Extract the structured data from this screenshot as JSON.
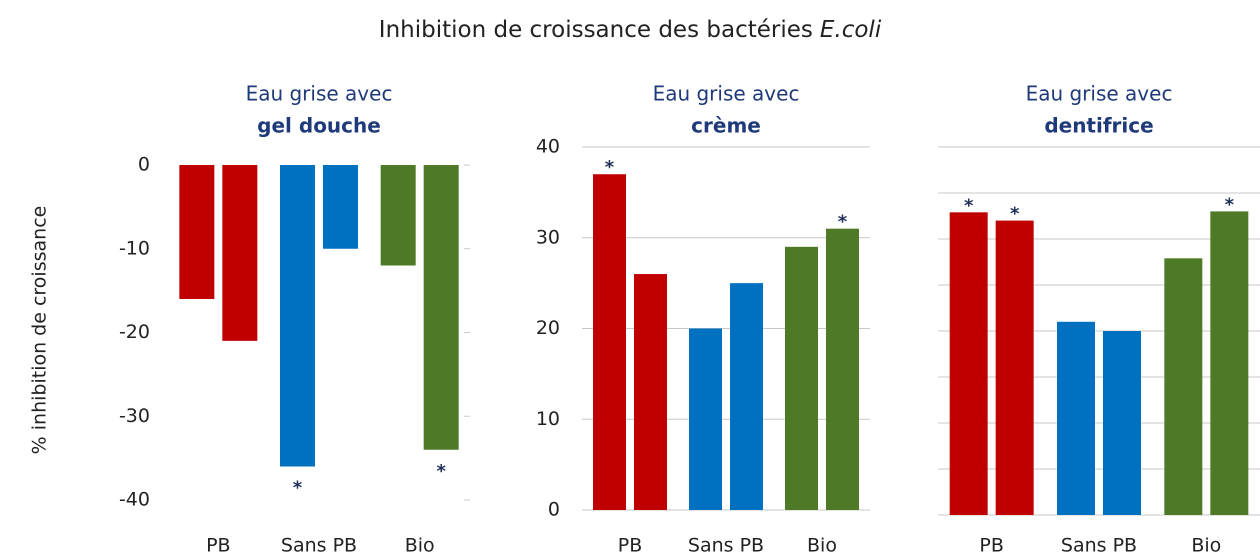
{
  "chart_data": {
    "type": "bar",
    "title_parts": [
      "Inhibition de croissance des bactéries",
      "E.coli"
    ],
    "ylabel": "% inhibition de croissance",
    "significance_marker": "*",
    "panels": [
      {
        "subtitle": [
          "Eau grise avec",
          "gel douche"
        ],
        "categories": [
          "PB",
          "Sans PB",
          "Bio"
        ],
        "values": [
          -16,
          -21,
          -36,
          -10,
          -12,
          -34
        ],
        "colors": [
          "#c00000",
          "#c00000",
          "#0070c0",
          "#0070c0",
          "#4e7a27",
          "#4e7a27"
        ],
        "significant_bars": [
          2,
          5
        ],
        "ylim": [
          -40,
          0
        ],
        "yticks": [
          0,
          -10,
          -20,
          -30,
          -40
        ],
        "grid": false
      },
      {
        "subtitle": [
          "Eau grise avec",
          "crème"
        ],
        "categories": [
          "PB",
          "Sans PB",
          "Bio"
        ],
        "values": [
          37,
          26,
          20,
          25,
          29,
          31
        ],
        "colors": [
          "#c00000",
          "#c00000",
          "#0070c0",
          "#0070c0",
          "#4e7a27",
          "#4e7a27"
        ],
        "significant_bars": [
          0,
          5
        ],
        "ylim": [
          0,
          40
        ],
        "yticks": [
          0,
          10,
          20,
          30,
          40
        ],
        "grid": true
      },
      {
        "subtitle": [
          "Eau grise avec",
          "dentifrice"
        ],
        "categories": [
          "PB",
          "Sans PB",
          "Bio"
        ],
        "values": [
          32.9,
          32,
          21,
          20,
          27.9,
          33
        ],
        "colors": [
          "#c00000",
          "#c00000",
          "#0070c0",
          "#0070c0",
          "#4e7a27",
          "#4e7a27"
        ],
        "significant_bars": [
          0,
          1,
          5
        ],
        "ylim": [
          0,
          40
        ],
        "gridlines": [
          0,
          5,
          10,
          15,
          20,
          25,
          30,
          35,
          40
        ],
        "grid": true
      }
    ]
  }
}
